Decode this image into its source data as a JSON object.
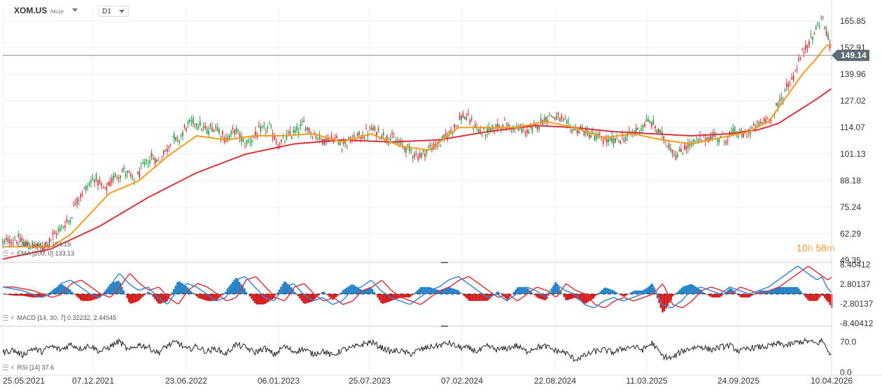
{
  "header": {
    "symbol": "XOM.US",
    "asset_type": "Akcje",
    "timeframe": "D1"
  },
  "countdown": {
    "hours": "10",
    "h_unit": "h",
    "minutes": "58",
    "m_unit": "m"
  },
  "legend": {
    "ema50": "EMA [50, 0] 154.19",
    "ema200": "EMA [200, 0] 133.13",
    "macd": "MACD [14, 30, 7] 0.32232, 2.44545",
    "rsi": "RSI [14] 37.6"
  },
  "colors": {
    "up": "#2e9e4a",
    "down": "#d9333c",
    "ema50": "#f59b1e",
    "ema200": "#d9333c",
    "macd_line": "#3a86d6",
    "signal_line": "#d9333c",
    "hist_pos": "#1f7fc4",
    "hist_neg": "#d61818",
    "rsi": "#222222",
    "price_tag": "#5f6b73"
  },
  "chart_data": [
    {
      "type": "candlestick",
      "title": "XOM.US D1",
      "x_ticks": [
        "25.05.2021",
        "07.12.2021",
        "23.06.2022",
        "06.01.2023",
        "25.07.2023",
        "07.02.2024",
        "22.08.2024",
        "11.03.2025",
        "24.09.2025",
        "10.04.2026"
      ],
      "y_ticks": [
        49.35,
        62.29,
        75.24,
        88.18,
        101.13,
        114.07,
        127.02,
        139.96,
        152.91,
        165.85
      ],
      "ylim": [
        49.35,
        172
      ],
      "last_price": 149.14,
      "grid": true,
      "close_path": [
        [
          0,
          58
        ],
        [
          3,
          60
        ],
        [
          5,
          57
        ],
        [
          8,
          55
        ],
        [
          10,
          60
        ],
        [
          12,
          65
        ],
        [
          14,
          70
        ],
        [
          15,
          78
        ],
        [
          17,
          84
        ],
        [
          19,
          90
        ],
        [
          20,
          86
        ],
        [
          21,
          83
        ],
        [
          23,
          90
        ],
        [
          25,
          93
        ],
        [
          26,
          91
        ],
        [
          27,
          87
        ],
        [
          29,
          95
        ],
        [
          31,
          100
        ],
        [
          32,
          97
        ],
        [
          34,
          104
        ],
        [
          35,
          110
        ],
        [
          36,
          107
        ],
        [
          38,
          115
        ],
        [
          40,
          117
        ],
        [
          42,
          112
        ],
        [
          44,
          115
        ],
        [
          46,
          108
        ],
        [
          48,
          113
        ],
        [
          50,
          106
        ],
        [
          52,
          110
        ],
        [
          53,
          112
        ],
        [
          55,
          114
        ],
        [
          57,
          105
        ],
        [
          59,
          110
        ],
        [
          61,
          113
        ],
        [
          62,
          116
        ],
        [
          64,
          111
        ],
        [
          66,
          108
        ],
        [
          68,
          109
        ],
        [
          70,
          106
        ],
        [
          72,
          108
        ],
        [
          74,
          110
        ],
        [
          76,
          113
        ],
        [
          78,
          111
        ],
        [
          80,
          109
        ],
        [
          82,
          106
        ],
        [
          84,
          103
        ],
        [
          86,
          100
        ],
        [
          88,
          104
        ],
        [
          90,
          106
        ],
        [
          92,
          111
        ],
        [
          94,
          117
        ],
        [
          95,
          120
        ],
        [
          97,
          116
        ],
        [
          99,
          111
        ],
        [
          101,
          113
        ],
        [
          103,
          116
        ],
        [
          105,
          114
        ],
        [
          107,
          113
        ],
        [
          109,
          112
        ],
        [
          111,
          117
        ],
        [
          113,
          120
        ],
        [
          115,
          118
        ],
        [
          117,
          114
        ],
        [
          119,
          113
        ],
        [
          121,
          111
        ],
        [
          123,
          109
        ],
        [
          125,
          107
        ],
        [
          127,
          108
        ],
        [
          129,
          110
        ],
        [
          131,
          113
        ],
        [
          133,
          117
        ],
        [
          134,
          116
        ],
        [
          136,
          110
        ],
        [
          138,
          104
        ],
        [
          139,
          100
        ],
        [
          141,
          105
        ],
        [
          143,
          107
        ],
        [
          145,
          109
        ],
        [
          147,
          110
        ],
        [
          149,
          108
        ],
        [
          151,
          112
        ],
        [
          153,
          110
        ],
        [
          155,
          114
        ],
        [
          157,
          117
        ],
        [
          159,
          120
        ],
        [
          160,
          125
        ],
        [
          161,
          130
        ],
        [
          162,
          135
        ],
        [
          163,
          138
        ],
        [
          164,
          145
        ],
        [
          165,
          150
        ],
        [
          166,
          155
        ],
        [
          167,
          158
        ],
        [
          168,
          163
        ],
        [
          169,
          168
        ],
        [
          170,
          160
        ],
        [
          171,
          149
        ]
      ],
      "series": [
        {
          "name": "EMA [50, 0]",
          "points": [
            [
              0,
              56
            ],
            [
              10,
              56
            ],
            [
              14,
              62
            ],
            [
              18,
              72
            ],
            [
              22,
              82
            ],
            [
              28,
              88
            ],
            [
              34,
              100
            ],
            [
              40,
              110
            ],
            [
              46,
              108
            ],
            [
              52,
              110
            ],
            [
              58,
              110
            ],
            [
              64,
              111
            ],
            [
              70,
              107
            ],
            [
              76,
              111
            ],
            [
              82,
              105
            ],
            [
              88,
              103
            ],
            [
              94,
              114
            ],
            [
              100,
              114
            ],
            [
              106,
              114
            ],
            [
              112,
              117
            ],
            [
              118,
              114
            ],
            [
              124,
              109
            ],
            [
              130,
              111
            ],
            [
              136,
              108
            ],
            [
              142,
              106
            ],
            [
              148,
              109
            ],
            [
              154,
              112
            ],
            [
              158,
              117
            ],
            [
              162,
              130
            ],
            [
              165,
              140
            ],
            [
              168,
              148
            ],
            [
              170,
              154
            ],
            [
              171,
              154
            ]
          ]
        },
        {
          "name": "EMA [200, 0]",
          "points": [
            [
              0,
              50
            ],
            [
              10,
              55
            ],
            [
              20,
              66
            ],
            [
              30,
              80
            ],
            [
              40,
              92
            ],
            [
              50,
              101
            ],
            [
              60,
              106
            ],
            [
              70,
              108
            ],
            [
              80,
              107
            ],
            [
              90,
              108
            ],
            [
              100,
              112
            ],
            [
              110,
              115
            ],
            [
              118,
              114
            ],
            [
              126,
              112
            ],
            [
              134,
              111
            ],
            [
              142,
              110
            ],
            [
              150,
              111
            ],
            [
              156,
              113
            ],
            [
              160,
              116
            ],
            [
              164,
              122
            ],
            [
              168,
              128
            ],
            [
              171,
              133
            ]
          ]
        }
      ]
    },
    {
      "type": "line",
      "title": "MACD [14, 30, 7]",
      "y_ticks": [
        -8.40412,
        -2.80137,
        2.80137,
        8.40412
      ],
      "ylim": [
        -8.40412,
        8.40412
      ],
      "macd_value": 0.32232,
      "signal_value": 2.44545,
      "macd_path": [
        [
          0,
          2
        ],
        [
          4,
          1
        ],
        [
          8,
          -1
        ],
        [
          10,
          0
        ],
        [
          12,
          3
        ],
        [
          14,
          4
        ],
        [
          16,
          2
        ],
        [
          18,
          0
        ],
        [
          20,
          -1
        ],
        [
          22,
          2
        ],
        [
          23,
          4
        ],
        [
          24,
          6
        ],
        [
          26,
          3
        ],
        [
          28,
          1
        ],
        [
          30,
          2
        ],
        [
          32,
          -1
        ],
        [
          34,
          -3
        ],
        [
          36,
          1
        ],
        [
          38,
          3
        ],
        [
          40,
          2
        ],
        [
          42,
          0
        ],
        [
          44,
          -2
        ],
        [
          46,
          -1
        ],
        [
          48,
          4
        ],
        [
          50,
          5
        ],
        [
          52,
          2
        ],
        [
          54,
          -1
        ],
        [
          56,
          -2
        ],
        [
          58,
          2
        ],
        [
          60,
          3
        ],
        [
          62,
          0
        ],
        [
          64,
          -2
        ],
        [
          66,
          -1
        ],
        [
          68,
          -3
        ],
        [
          70,
          -2
        ],
        [
          72,
          1
        ],
        [
          74,
          2
        ],
        [
          76,
          4
        ],
        [
          78,
          1
        ],
        [
          80,
          -1
        ],
        [
          82,
          -2
        ],
        [
          84,
          -3
        ],
        [
          86,
          -1
        ],
        [
          88,
          1
        ],
        [
          90,
          2
        ],
        [
          92,
          4
        ],
        [
          94,
          5
        ],
        [
          96,
          3
        ],
        [
          98,
          1
        ],
        [
          100,
          -1
        ],
        [
          102,
          0
        ],
        [
          104,
          -2
        ],
        [
          106,
          0
        ],
        [
          108,
          2
        ],
        [
          110,
          1
        ],
        [
          112,
          -1
        ],
        [
          114,
          3
        ],
        [
          116,
          1
        ],
        [
          118,
          0
        ],
        [
          120,
          -3
        ],
        [
          122,
          -4
        ],
        [
          124,
          -2
        ],
        [
          126,
          -1
        ],
        [
          128,
          -2
        ],
        [
          130,
          -1
        ],
        [
          132,
          0
        ],
        [
          134,
          3
        ],
        [
          136,
          -3
        ],
        [
          138,
          -4
        ],
        [
          140,
          -2
        ],
        [
          142,
          1
        ],
        [
          144,
          2
        ],
        [
          146,
          1
        ],
        [
          148,
          0
        ],
        [
          150,
          2
        ],
        [
          152,
          1
        ],
        [
          154,
          0
        ],
        [
          156,
          1
        ],
        [
          158,
          2
        ],
        [
          160,
          4
        ],
        [
          162,
          6
        ],
        [
          164,
          8
        ],
        [
          166,
          6
        ],
        [
          168,
          4
        ],
        [
          169,
          5
        ],
        [
          170,
          2
        ],
        [
          171,
          0.32
        ]
      ],
      "hist_note": "histogram = MACD minus signal"
    },
    {
      "type": "line",
      "title": "RSI [14]",
      "y_ticks": [
        0.0,
        70.0
      ],
      "ylim": [
        0,
        100
      ],
      "last": 37.6,
      "rsi_path": [
        [
          0,
          45
        ],
        [
          2,
          52
        ],
        [
          4,
          40
        ],
        [
          6,
          55
        ],
        [
          8,
          48
        ],
        [
          10,
          60
        ],
        [
          12,
          52
        ],
        [
          14,
          65
        ],
        [
          16,
          55
        ],
        [
          18,
          62
        ],
        [
          20,
          48
        ],
        [
          22,
          58
        ],
        [
          24,
          72
        ],
        [
          26,
          50
        ],
        [
          28,
          64
        ],
        [
          30,
          58
        ],
        [
          32,
          45
        ],
        [
          34,
          62
        ],
        [
          36,
          70
        ],
        [
          38,
          52
        ],
        [
          40,
          60
        ],
        [
          42,
          48
        ],
        [
          44,
          55
        ],
        [
          46,
          42
        ],
        [
          48,
          64
        ],
        [
          50,
          58
        ],
        [
          52,
          46
        ],
        [
          54,
          56
        ],
        [
          56,
          40
        ],
        [
          58,
          60
        ],
        [
          60,
          48
        ],
        [
          62,
          54
        ],
        [
          64,
          42
        ],
        [
          66,
          50
        ],
        [
          68,
          38
        ],
        [
          70,
          52
        ],
        [
          72,
          56
        ],
        [
          74,
          64
        ],
        [
          76,
          70
        ],
        [
          78,
          58
        ],
        [
          80,
          48
        ],
        [
          82,
          50
        ],
        [
          84,
          42
        ],
        [
          86,
          52
        ],
        [
          88,
          58
        ],
        [
          90,
          62
        ],
        [
          92,
          68
        ],
        [
          94,
          58
        ],
        [
          96,
          56
        ],
        [
          98,
          48
        ],
        [
          100,
          60
        ],
        [
          102,
          52
        ],
        [
          104,
          55
        ],
        [
          106,
          62
        ],
        [
          108,
          48
        ],
        [
          110,
          58
        ],
        [
          112,
          60
        ],
        [
          114,
          50
        ],
        [
          116,
          46
        ],
        [
          118,
          30
        ],
        [
          120,
          38
        ],
        [
          122,
          48
        ],
        [
          124,
          52
        ],
        [
          126,
          46
        ],
        [
          128,
          55
        ],
        [
          130,
          60
        ],
        [
          132,
          52
        ],
        [
          134,
          68
        ],
        [
          136,
          38
        ],
        [
          138,
          32
        ],
        [
          140,
          48
        ],
        [
          142,
          56
        ],
        [
          144,
          60
        ],
        [
          146,
          52
        ],
        [
          148,
          58
        ],
        [
          150,
          62
        ],
        [
          152,
          48
        ],
        [
          154,
          56
        ],
        [
          156,
          58
        ],
        [
          158,
          60
        ],
        [
          160,
          66
        ],
        [
          162,
          62
        ],
        [
          164,
          70
        ],
        [
          166,
          72
        ],
        [
          168,
          66
        ],
        [
          169,
          74
        ],
        [
          170,
          56
        ],
        [
          171,
          37.6
        ]
      ]
    }
  ]
}
